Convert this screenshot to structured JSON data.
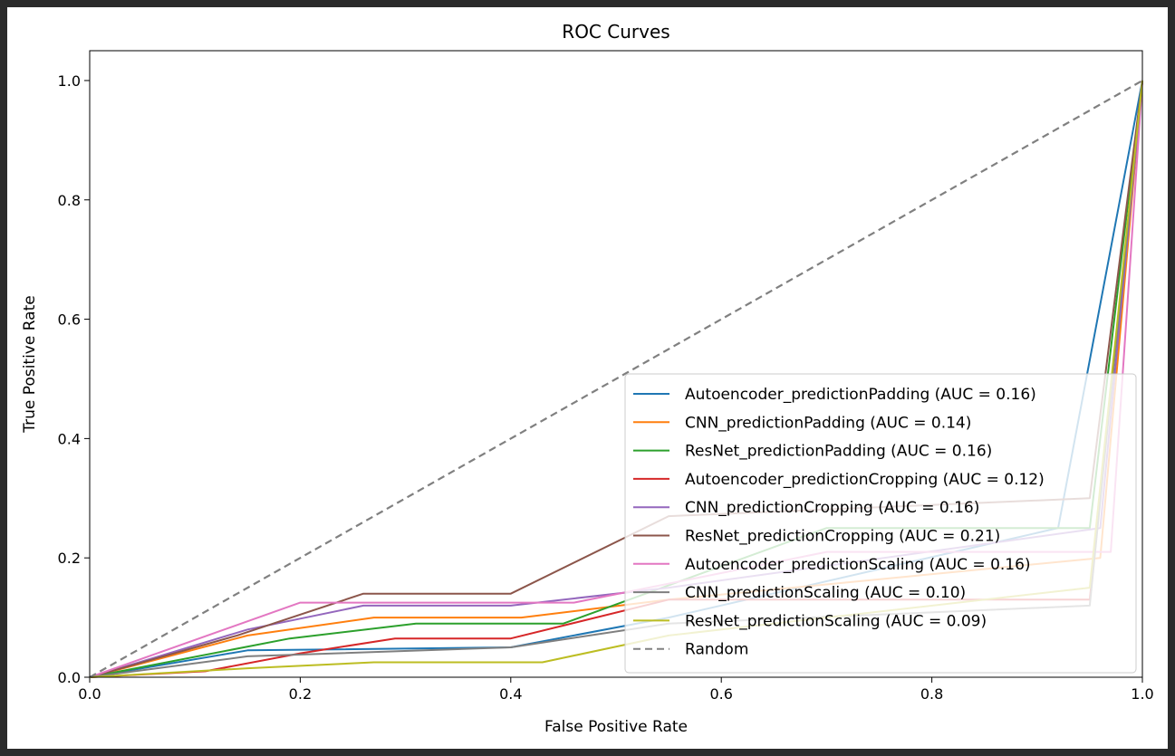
{
  "chart_data": {
    "type": "line",
    "title": "ROC Curves",
    "xlabel": "False Positive Rate",
    "ylabel": "True Positive Rate",
    "xlim": [
      0.0,
      1.0
    ],
    "ylim": [
      0.0,
      1.05
    ],
    "xticks": [
      "0.0",
      "0.2",
      "0.4",
      "0.6",
      "0.8",
      "1.0"
    ],
    "yticks": [
      "0.0",
      "0.2",
      "0.4",
      "0.6",
      "0.8",
      "1.0"
    ],
    "grid": false,
    "legend_position": "lower-right",
    "series": [
      {
        "name": "Autoencoder_predictionPadding (AUC = 0.16)",
        "color": "#1f77b4",
        "dash": false,
        "x": [
          0,
          0.15,
          0.4,
          0.55,
          0.92,
          1.0
        ],
        "y": [
          0,
          0.045,
          0.05,
          0.1,
          0.25,
          1.0
        ]
      },
      {
        "name": "CNN_predictionPadding (AUC = 0.14)",
        "color": "#ff7f0e",
        "dash": false,
        "x": [
          0,
          0.15,
          0.27,
          0.41,
          0.55,
          0.96,
          1.0
        ],
        "y": [
          0,
          0.07,
          0.1,
          0.1,
          0.13,
          0.2,
          1.0
        ]
      },
      {
        "name": "ResNet_predictionPadding (AUC = 0.16)",
        "color": "#2ca02c",
        "dash": false,
        "x": [
          0,
          0.19,
          0.31,
          0.45,
          0.7,
          0.95,
          1.0
        ],
        "y": [
          0,
          0.065,
          0.09,
          0.09,
          0.25,
          0.25,
          1.0
        ]
      },
      {
        "name": "Autoencoder_predictionCropping (AUC = 0.12)",
        "color": "#d62728",
        "dash": false,
        "x": [
          0,
          0.11,
          0.2,
          0.29,
          0.4,
          0.55,
          0.95,
          1.0
        ],
        "y": [
          0,
          0.01,
          0.04,
          0.065,
          0.065,
          0.13,
          0.13,
          1.0
        ]
      },
      {
        "name": "CNN_predictionCropping (AUC = 0.16)",
        "color": "#9467bd",
        "dash": false,
        "x": [
          0,
          0.15,
          0.26,
          0.4,
          0.55,
          0.96,
          1.0
        ],
        "y": [
          0,
          0.08,
          0.12,
          0.12,
          0.15,
          0.25,
          1.0
        ]
      },
      {
        "name": "ResNet_predictionCropping (AUC = 0.21)",
        "color": "#8c564b",
        "dash": false,
        "x": [
          0,
          0.14,
          0.26,
          0.4,
          0.55,
          0.95,
          1.0
        ],
        "y": [
          0,
          0.07,
          0.14,
          0.14,
          0.27,
          0.3,
          1.0
        ]
      },
      {
        "name": "Autoencoder_predictionScaling (AUC = 0.16)",
        "color": "#e377c2",
        "dash": false,
        "x": [
          0,
          0.2,
          0.46,
          0.7,
          0.97,
          1.0
        ],
        "y": [
          0,
          0.125,
          0.125,
          0.21,
          0.21,
          1.0
        ]
      },
      {
        "name": "CNN_predictionScaling (AUC = 0.10)",
        "color": "#7f7f7f",
        "dash": false,
        "x": [
          0,
          0.15,
          0.4,
          0.55,
          0.95,
          1.0
        ],
        "y": [
          0,
          0.035,
          0.05,
          0.09,
          0.12,
          1.0
        ]
      },
      {
        "name": "ResNet_predictionScaling (AUC = 0.09)",
        "color": "#bcbd22",
        "dash": false,
        "x": [
          0,
          0.15,
          0.27,
          0.43,
          0.55,
          0.95,
          1.0
        ],
        "y": [
          0,
          0.015,
          0.025,
          0.025,
          0.07,
          0.15,
          1.0
        ]
      },
      {
        "name": "Random",
        "color": "#808080",
        "dash": true,
        "x": [
          0,
          1.0
        ],
        "y": [
          0,
          1.0
        ]
      }
    ]
  }
}
